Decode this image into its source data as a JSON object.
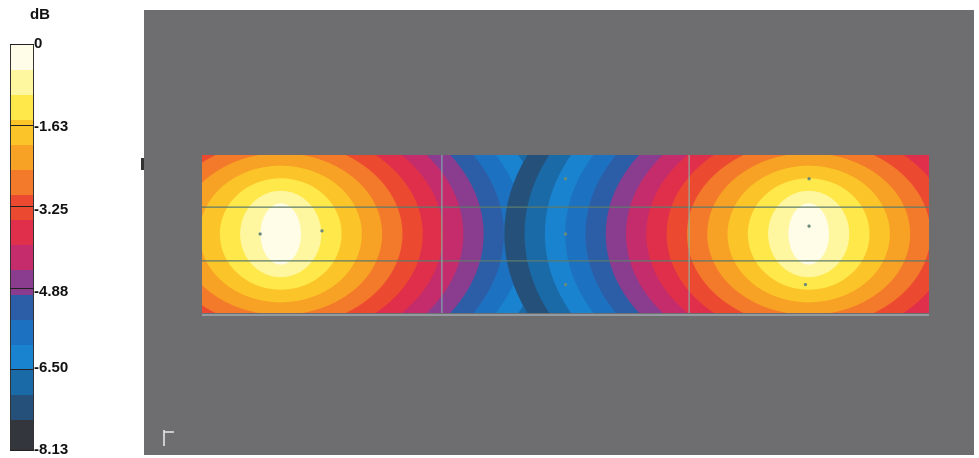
{
  "chart_data": {
    "type": "heatmap",
    "title": "",
    "xlabel": "",
    "ylabel": "",
    "colorbar": {
      "unit_label": "dB",
      "range": [
        -8.13,
        0
      ],
      "tick_labels": [
        "0",
        "-1.63",
        "-3.25",
        "-4.88",
        "-6.50",
        "-8.13"
      ],
      "tick_values": [
        0,
        -1.63,
        -3.25,
        -4.88,
        -6.5,
        -8.13
      ],
      "bands": [
        {
          "from": 0.0,
          "to": -0.5,
          "color": "#fffde8"
        },
        {
          "from": -0.5,
          "to": -1.0,
          "color": "#fff7a0"
        },
        {
          "from": -1.0,
          "to": -1.5,
          "color": "#ffe84a"
        },
        {
          "from": -1.5,
          "to": -2.0,
          "color": "#fbc52a"
        },
        {
          "from": -2.0,
          "to": -2.5,
          "color": "#f7a224"
        },
        {
          "from": -2.5,
          "to": -3.0,
          "color": "#f27a2a"
        },
        {
          "from": -3.0,
          "to": -3.5,
          "color": "#ec4a30"
        },
        {
          "from": -3.5,
          "to": -4.0,
          "color": "#e02f4a"
        },
        {
          "from": -4.0,
          "to": -4.5,
          "color": "#c42c6c"
        },
        {
          "from": -4.5,
          "to": -5.0,
          "color": "#8a3c8e"
        },
        {
          "from": -5.0,
          "to": -5.5,
          "color": "#2c5ea8"
        },
        {
          "from": -5.5,
          "to": -6.0,
          "color": "#1c72c0"
        },
        {
          "from": -6.0,
          "to": -6.5,
          "color": "#1a83cf"
        },
        {
          "from": -6.5,
          "to": -7.0,
          "color": "#1b6aa8"
        },
        {
          "from": -7.0,
          "to": -7.5,
          "color": "#24507a"
        },
        {
          "from": -7.5,
          "to": -8.13,
          "color": "#33363c"
        }
      ]
    },
    "sources": [
      {
        "name": "left",
        "center_x": 0.1,
        "center_y": 0.5,
        "peak_db": 0
      },
      {
        "name": "right",
        "center_x": 0.84,
        "center_y": 0.5,
        "peak_db": 0
      }
    ],
    "grid": {
      "x_divisions": [
        0.33,
        0.67
      ],
      "y_divisions": [
        0.33,
        0.67
      ]
    },
    "colors": {
      "background": "#6e6e70",
      "grid_line": "#5c7b6a",
      "grid_line_vertical": "#7fbfb0"
    }
  }
}
